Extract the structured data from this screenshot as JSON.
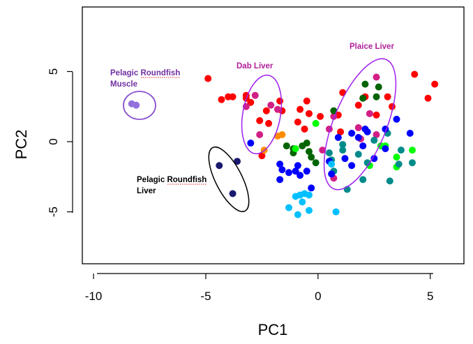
{
  "chart_data": {
    "type": "scatter",
    "xlabel": "PC1",
    "ylabel": "PC2",
    "xlim": [
      -10.5,
      6.5
    ],
    "ylim": [
      -8.7,
      9.6
    ],
    "x_ticks": [
      -10,
      -5,
      0,
      5
    ],
    "x_tick_labels": [
      "-10",
      "-5",
      "0",
      "5"
    ],
    "y_ticks": [
      -5,
      0,
      5
    ],
    "y_tick_labels": [
      "-5",
      "0",
      "5"
    ],
    "grid": false,
    "legend": "none",
    "colors": {
      "red": "#ff0000",
      "pink": "#d21f85",
      "darkgreen": "#006400",
      "green": "#00ff00",
      "teal": "#008b8b",
      "blue": "#0000ff",
      "lightblue": "#00bfff",
      "navy": "#191970",
      "lavender": "#9370db",
      "orange": "#ff8c00",
      "ellipse_purple": "#a020f0",
      "ellipse_violet": "#8a4fd0",
      "ellipse_black": "#000000"
    },
    "series": [
      {
        "color": "red",
        "points": [
          [
            -4.9,
            4.5
          ],
          [
            -4.3,
            3.0
          ],
          [
            -4.0,
            3.2
          ],
          [
            -3.8,
            3.2
          ],
          [
            -3.2,
            3.3
          ],
          [
            -3.2,
            3.1
          ],
          [
            -3.0,
            2.8
          ],
          [
            -2.6,
            1.5
          ],
          [
            -2.3,
            2.2
          ],
          [
            -2.2,
            1.3
          ],
          [
            -2.5,
            -1.0
          ],
          [
            -1.7,
            2.9
          ],
          [
            -1.6,
            2.2
          ],
          [
            -0.9,
            1.4
          ],
          [
            -0.8,
            2.3
          ],
          [
            -0.5,
            2.9
          ],
          [
            -0.4,
            2.0
          ],
          [
            -0.6,
            0.9
          ],
          [
            0.1,
            1.8
          ],
          [
            0.9,
            1.9
          ],
          [
            1.0,
            0.7
          ],
          [
            1.8,
            2.6
          ],
          [
            2.1,
            3.2
          ],
          [
            2.6,
            1.9
          ],
          [
            3.1,
            3.2
          ],
          [
            3.3,
            2.5
          ],
          [
            4.3,
            4.8
          ],
          [
            4.9,
            3.1
          ],
          [
            5.2,
            4.1
          ],
          [
            1.1,
            3.5
          ]
        ]
      },
      {
        "color": "pink",
        "points": [
          [
            -2.8,
            3.3
          ],
          [
            -3.2,
            2.5
          ],
          [
            -2.1,
            2.6
          ],
          [
            -2.6,
            0.5
          ],
          [
            0.2,
            -0.6
          ],
          [
            0.5,
            0.9
          ],
          [
            0.7,
            1.8
          ],
          [
            1.8,
            1.0
          ],
          [
            2.3,
            2.0
          ],
          [
            2.6,
            4.6
          ],
          [
            2.6,
            0.5
          ],
          [
            -1.8,
            2.3
          ],
          [
            0.7,
            -2.6
          ],
          [
            1.9,
            0.2
          ]
        ]
      },
      {
        "color": "darkgreen",
        "points": [
          [
            -1.4,
            -0.3
          ],
          [
            -1.1,
            -0.5
          ],
          [
            -1.1,
            -0.8
          ],
          [
            -0.7,
            -0.3
          ],
          [
            -0.5,
            -0.1
          ],
          [
            -0.4,
            -0.7
          ],
          [
            -0.3,
            -1.1
          ],
          [
            -0.1,
            -1.5
          ],
          [
            0.7,
            2.2
          ],
          [
            2.1,
            4.1
          ],
          [
            2.0,
            3.1
          ],
          [
            2.7,
            3.9
          ],
          [
            2.6,
            3.2
          ]
        ]
      },
      {
        "color": "green",
        "points": [
          [
            -1.0,
            -0.5
          ],
          [
            -0.1,
            1.3
          ],
          [
            2.3,
            -1.7
          ],
          [
            2.8,
            -0.3
          ],
          [
            3.0,
            -0.3
          ],
          [
            3.5,
            -1.1
          ],
          [
            4.2,
            -0.6
          ],
          [
            3.5,
            -1.8
          ]
        ]
      },
      {
        "color": "teal",
        "points": [
          [
            0.5,
            -0.8
          ],
          [
            0.6,
            -1.3
          ],
          [
            0.7,
            -2.1
          ],
          [
            1.1,
            -0.6
          ],
          [
            1.3,
            -3.4
          ],
          [
            1.8,
            -0.9
          ],
          [
            2.2,
            -1.5
          ],
          [
            2.0,
            -2.7
          ],
          [
            3.2,
            -2.8
          ],
          [
            3.6,
            -1.6
          ],
          [
            3.7,
            -0.6
          ],
          [
            4.2,
            -1.5
          ],
          [
            1.1,
            -0.2
          ],
          [
            2.5,
            0.1
          ],
          [
            3.1,
            0.6
          ]
        ]
      },
      {
        "color": "blue",
        "points": [
          [
            -3.0,
            -0.1
          ],
          [
            -1.7,
            -1.6
          ],
          [
            -1.6,
            -2.0
          ],
          [
            -1.7,
            -2.7
          ],
          [
            -1.3,
            -2.2
          ],
          [
            -1.0,
            -2.1
          ],
          [
            -0.9,
            -1.7
          ],
          [
            -0.8,
            -2.4
          ],
          [
            -0.5,
            -2.1
          ],
          [
            -0.3,
            -3.3
          ],
          [
            0.6,
            -2.3
          ],
          [
            0.9,
            0.3
          ],
          [
            1.2,
            -1.2
          ],
          [
            1.5,
            -1.7
          ],
          [
            2.0,
            -0.3
          ],
          [
            2.1,
            0.9
          ],
          [
            2.2,
            0.7
          ],
          [
            2.5,
            -1.2
          ],
          [
            3.0,
            0.9
          ],
          [
            3.0,
            -0.5
          ],
          [
            3.5,
            1.6
          ],
          [
            4.1,
            0.6
          ],
          [
            1.5,
            0.6
          ],
          [
            1.8,
            0.3
          ],
          [
            0.5,
            -1.4
          ]
        ]
      },
      {
        "color": "lightblue",
        "points": [
          [
            -1.3,
            -4.7
          ],
          [
            -1.0,
            -3.9
          ],
          [
            -0.7,
            -4.3
          ],
          [
            -0.9,
            -5.2
          ],
          [
            -0.4,
            -4.9
          ],
          [
            -0.8,
            -3.8
          ],
          [
            -0.4,
            -3.8
          ],
          [
            0.6,
            -1.6
          ],
          [
            0.8,
            -5.0
          ],
          [
            -0.6,
            -3.7
          ]
        ]
      },
      {
        "color": "navy",
        "points": [
          [
            -4.4,
            -1.7
          ],
          [
            -3.8,
            -3.7
          ],
          [
            -3.6,
            -1.4
          ]
        ]
      },
      {
        "color": "lavender",
        "points": [
          [
            -8.3,
            2.7
          ],
          [
            -8.1,
            2.6
          ]
        ]
      },
      {
        "color": "orange",
        "points": [
          [
            -1.6,
            0.5
          ],
          [
            -1.8,
            0.4
          ],
          [
            -2.4,
            -0.6
          ]
        ]
      }
    ],
    "annotations": [
      {
        "text": "Pelagic Roundfish",
        "color": "#7030a0"
      },
      {
        "text": "Muscle",
        "color": "#7030a0"
      },
      {
        "text": "Dab Liver",
        "color": "#b0209a"
      },
      {
        "text": "Plaice Liver",
        "color": "#b0209a"
      },
      {
        "text": "Pelagic Roundfish",
        "color": "#000000"
      },
      {
        "text": "Liver",
        "color": "#000000"
      }
    ]
  }
}
